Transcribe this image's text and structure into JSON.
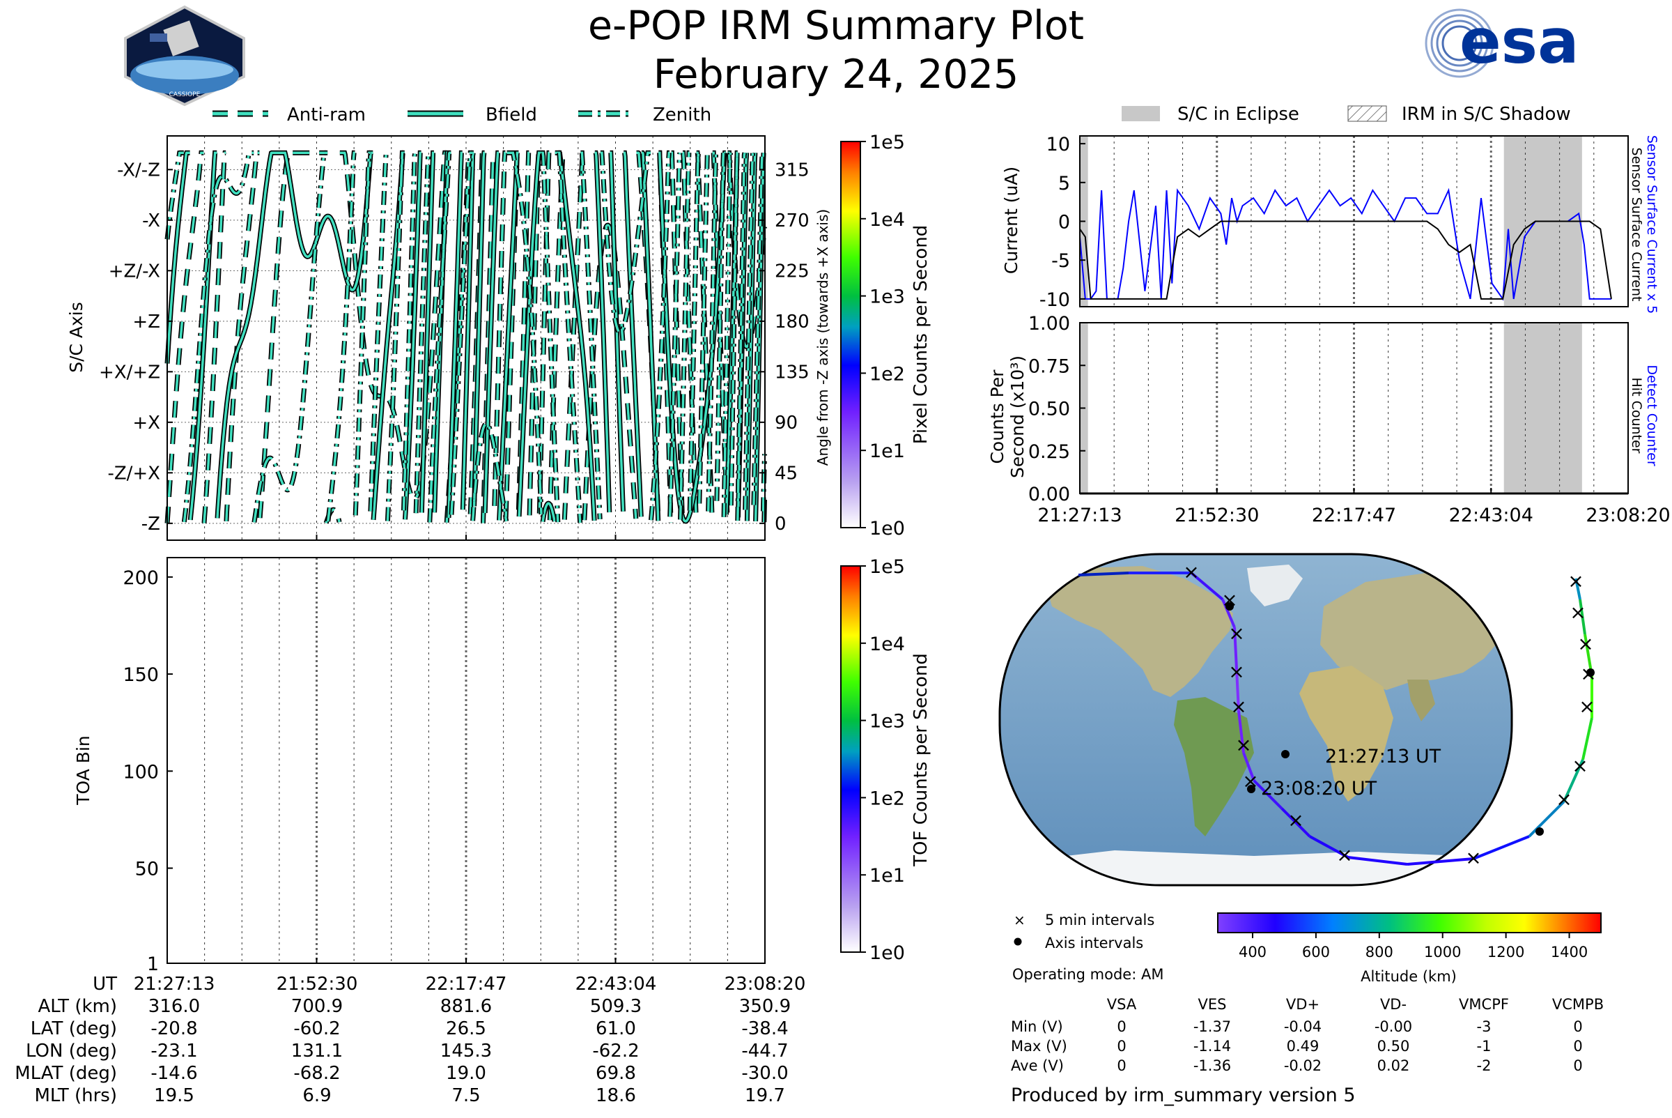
{
  "header": {
    "title": "e-POP IRM Summary Plot",
    "date": "February 24, 2025",
    "mission_logo_text": "CASSIOPE",
    "agency_logo_text": "esa"
  },
  "colors": {
    "trace_fill": "#40e0c0",
    "trace_edge": "#000000",
    "eclipse": "#c8c8c8",
    "sensor_current": "#0000ff",
    "surface_current": "#000000",
    "esa_blue": "#003399"
  },
  "chart_data": [
    {
      "id": "attitude",
      "type": "line",
      "legend": [
        "Anti-ram",
        "Bfield",
        "Zenith"
      ],
      "ylabel_left": "S/C Axis",
      "ylabel_right": "Angle from -Z axis (towards +X axis)",
      "y_axis_labels": [
        "-X/-Z",
        "-X",
        "+Z/-X",
        "+Z",
        "+X/+Z",
        "+X",
        "-Z/+X",
        "-Z"
      ],
      "y_axis_label_values": [
        315,
        270,
        225,
        180,
        135,
        90,
        45,
        0
      ],
      "y_ticks_right": [
        315,
        270,
        225,
        180,
        135,
        90,
        45,
        0
      ],
      "ylim": [
        -15,
        345
      ],
      "x_range_minutes": [
        0,
        101.1
      ],
      "colorbar": {
        "label": "Pixel Counts per Second",
        "ticks": [
          "1e5",
          "1e4",
          "1e3",
          "1e2",
          "1e1",
          "1e0"
        ],
        "scale": "log"
      }
    },
    {
      "id": "toa",
      "type": "heatmap",
      "ylabel": "TOA Bin",
      "y_ticks": [
        200,
        150,
        100,
        50,
        1
      ],
      "ylim": [
        1,
        210
      ],
      "values": [],
      "colorbar": {
        "label": "TOF Counts per Second",
        "ticks": [
          "1e5",
          "1e4",
          "1e3",
          "1e2",
          "1e1",
          "1e0"
        ],
        "scale": "log"
      }
    },
    {
      "id": "current",
      "type": "line",
      "legend": [
        "S/C in Eclipse",
        "IRM in S/C Shadow"
      ],
      "ylabel": "Current (uA)",
      "y_ticks": [
        10,
        5,
        0,
        -5,
        -10
      ],
      "ylim": [
        -11,
        11
      ],
      "right_labels": [
        "Sensor Surface Current x 5",
        "Sensor Surface Current"
      ],
      "eclipse_minutes": [
        [
          0,
          1.5
        ],
        [
          78.2,
          92.6
        ]
      ],
      "series": [
        {
          "name": "Sensor Surface Current x 5",
          "x": [
            0,
            1,
            2,
            3,
            4,
            5,
            6,
            7,
            8,
            9,
            10,
            12,
            14,
            15,
            16,
            17,
            18,
            20,
            22,
            24,
            26,
            27,
            28,
            29,
            30,
            32,
            34,
            36,
            38,
            40,
            42,
            44,
            46,
            48,
            50,
            52,
            54,
            56,
            58,
            60,
            62,
            64,
            66,
            68,
            70,
            72,
            74,
            76,
            78,
            79,
            80,
            82,
            84,
            86,
            88,
            90,
            92,
            93,
            94,
            96,
            98
          ],
          "y": [
            -2,
            -10,
            -10,
            -9,
            4,
            -10,
            -10,
            -10,
            -6,
            0,
            4,
            -9,
            2,
            -10,
            4,
            -8,
            4,
            2,
            -1,
            3,
            1,
            -3,
            3,
            0,
            2,
            3,
            1,
            4,
            2,
            3,
            0,
            2,
            4,
            2,
            3,
            1,
            4,
            2,
            0,
            3,
            3,
            1,
            1,
            4,
            -5,
            -10,
            3,
            -8,
            -10,
            -1,
            -10,
            -2,
            0,
            0,
            0,
            0,
            1,
            -3,
            -10,
            -10,
            -10
          ]
        },
        {
          "name": "Sensor Surface Current",
          "x": [
            0,
            1,
            2,
            3,
            4,
            5,
            6,
            8,
            10,
            12,
            14,
            16,
            18,
            20,
            22,
            24,
            26,
            28,
            30,
            32,
            34,
            36,
            38,
            40,
            42,
            44,
            46,
            48,
            50,
            52,
            54,
            56,
            58,
            60,
            62,
            64,
            66,
            68,
            70,
            72,
            74,
            76,
            78,
            80,
            82,
            84,
            86,
            88,
            90,
            92,
            94,
            96,
            98
          ],
          "y": [
            -1,
            -2,
            -10,
            -10,
            -10,
            -10,
            -10,
            -10,
            -10,
            -10,
            -10,
            -10,
            -2,
            -1,
            -2,
            -1,
            0,
            0,
            0,
            0,
            0,
            0,
            0,
            0,
            0,
            0,
            0,
            0,
            0,
            0,
            0,
            0,
            0,
            0,
            0,
            0,
            -1,
            -3,
            -4,
            -3,
            -10,
            -10,
            -10,
            -3,
            -1,
            0,
            0,
            0,
            0,
            0,
            0,
            -1,
            -10
          ]
        }
      ]
    },
    {
      "id": "counts",
      "type": "line",
      "ylabel": "Counts Per Second (x10³)",
      "y_ticks": [
        "1.00",
        "0.75",
        "0.50",
        "0.25",
        "0.00"
      ],
      "ylim": [
        0,
        1
      ],
      "right_labels": [
        "Detect Counter",
        "Hit Counter"
      ],
      "series": [
        {
          "name": "Detect Counter",
          "x": [
            0,
            101.1
          ],
          "y": [
            0,
            0
          ]
        },
        {
          "name": "Hit Counter",
          "x": [
            0,
            101.1
          ],
          "y": [
            0,
            0
          ]
        }
      ],
      "x_tick_labels": [
        "21:27:13",
        "21:52:30",
        "22:17:47",
        "22:43:04",
        "23:08:20"
      ]
    }
  ],
  "ephemeris": {
    "row_labels": [
      "UT",
      "ALT (km)",
      "LAT (deg)",
      "LON (deg)",
      "MLAT (deg)",
      "MLT (hrs)"
    ],
    "columns": [
      [
        "21:27:13",
        "316.0",
        "-20.8",
        "-23.1",
        "-14.6",
        "19.5"
      ],
      [
        "21:52:30",
        "700.9",
        "-60.2",
        "131.1",
        "-68.2",
        "6.9"
      ],
      [
        "22:17:47",
        "881.6",
        "26.5",
        "145.3",
        "19.0",
        "7.5"
      ],
      [
        "22:43:04",
        "509.3",
        "61.0",
        "-62.2",
        "69.8",
        "18.6"
      ],
      [
        "23:08:20",
        "350.9",
        "-38.4",
        "-44.7",
        "-30.0",
        "19.7"
      ]
    ]
  },
  "map": {
    "start_label": "21:27:13 UT",
    "end_label": "23:08:20 UT",
    "legend": [
      "5 min intervals",
      "Axis intervals"
    ],
    "colorbar_label": "Altitude (km)",
    "colorbar_ticks": [
      "400",
      "600",
      "800",
      "1000",
      "1200",
      "1400"
    ]
  },
  "footer": {
    "operating_mode": "Operating mode: AM",
    "voltage_headers": [
      "VSA",
      "VES",
      "VD+",
      "VD-",
      "VMCPF",
      "VCMPB"
    ],
    "voltage_rows": [
      {
        "label": "Min (V)",
        "values": [
          "0",
          "-1.37",
          "-0.04",
          "-0.00",
          "-3",
          "0"
        ]
      },
      {
        "label": "Max (V)",
        "values": [
          "0",
          "-1.14",
          "0.49",
          "0.50",
          "-1",
          "0"
        ]
      },
      {
        "label": "Ave (V)",
        "values": [
          "0",
          "-1.36",
          "-0.02",
          "0.02",
          "-2",
          "0"
        ]
      }
    ],
    "produced_by": "Produced by irm_summary version 5"
  }
}
